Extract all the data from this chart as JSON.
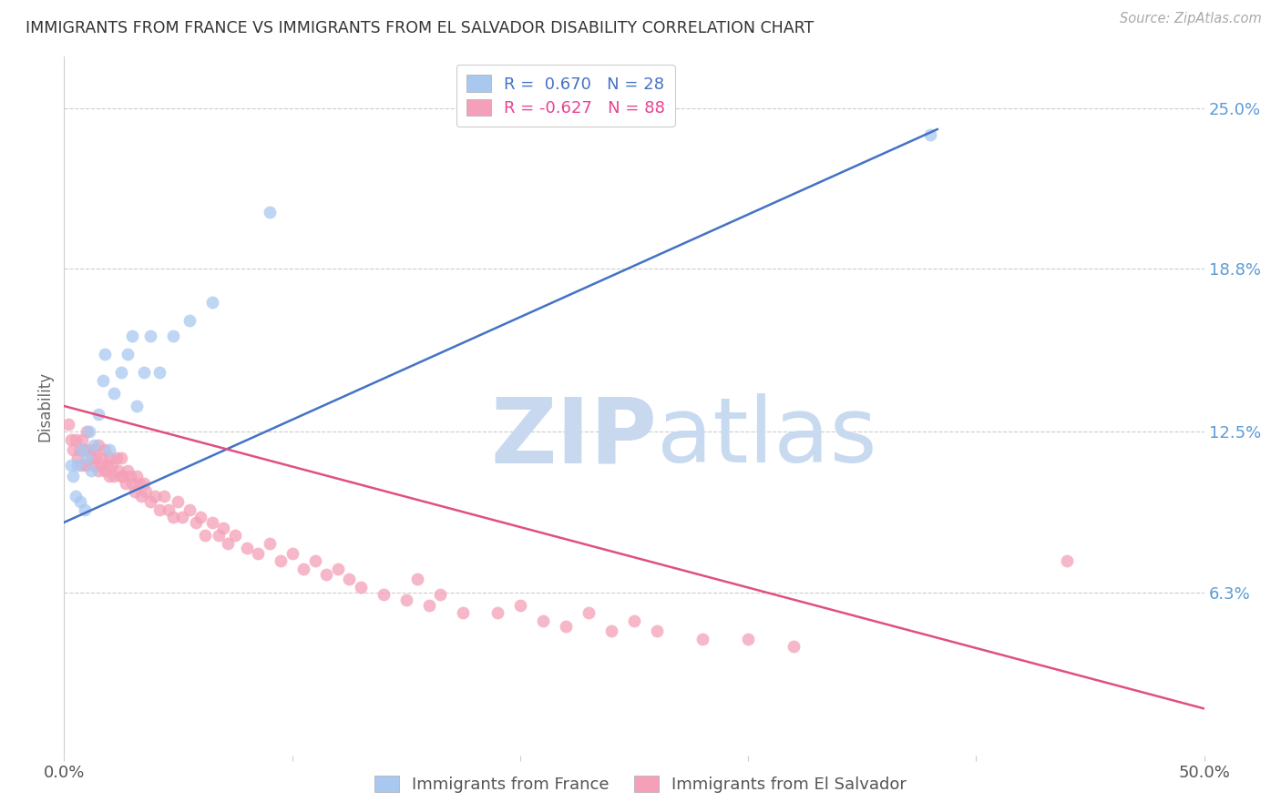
{
  "title": "IMMIGRANTS FROM FRANCE VS IMMIGRANTS FROM EL SALVADOR DISABILITY CORRELATION CHART",
  "source": "Source: ZipAtlas.com",
  "ylabel": "Disability",
  "xlim": [
    0.0,
    0.5
  ],
  "ylim": [
    0.0,
    0.27
  ],
  "yticks": [
    0.0,
    0.063,
    0.125,
    0.188,
    0.25
  ],
  "ytick_labels": [
    "",
    "6.3%",
    "12.5%",
    "18.8%",
    "25.0%"
  ],
  "r_france": 0.67,
  "n_france": 28,
  "r_elsalvador": -0.627,
  "n_elsalvador": 88,
  "france_color": "#a8c8f0",
  "elsalvador_color": "#f4a0b8",
  "france_line_color": "#4472c4",
  "elsalvador_line_color": "#e05080",
  "background_color": "#ffffff",
  "watermark_zip": "ZIP",
  "watermark_atlas": "atlas",
  "watermark_zip_color": "#c8d8ee",
  "watermark_atlas_color": "#c8daf0",
  "france_points_x": [
    0.003,
    0.004,
    0.005,
    0.006,
    0.007,
    0.008,
    0.009,
    0.01,
    0.011,
    0.012,
    0.013,
    0.015,
    0.017,
    0.018,
    0.02,
    0.022,
    0.025,
    0.028,
    0.03,
    0.032,
    0.035,
    0.038,
    0.042,
    0.048,
    0.055,
    0.065,
    0.09,
    0.38
  ],
  "france_points_y": [
    0.112,
    0.108,
    0.1,
    0.112,
    0.098,
    0.118,
    0.095,
    0.115,
    0.125,
    0.11,
    0.12,
    0.132,
    0.145,
    0.155,
    0.118,
    0.14,
    0.148,
    0.155,
    0.162,
    0.135,
    0.148,
    0.162,
    0.148,
    0.162,
    0.168,
    0.175,
    0.21,
    0.24
  ],
  "elsalvador_points_x": [
    0.002,
    0.003,
    0.004,
    0.005,
    0.006,
    0.007,
    0.008,
    0.008,
    0.009,
    0.01,
    0.01,
    0.011,
    0.012,
    0.013,
    0.013,
    0.014,
    0.015,
    0.015,
    0.016,
    0.017,
    0.018,
    0.018,
    0.019,
    0.02,
    0.02,
    0.021,
    0.022,
    0.023,
    0.024,
    0.025,
    0.025,
    0.026,
    0.027,
    0.028,
    0.029,
    0.03,
    0.031,
    0.032,
    0.033,
    0.034,
    0.035,
    0.036,
    0.038,
    0.04,
    0.042,
    0.044,
    0.046,
    0.048,
    0.05,
    0.052,
    0.055,
    0.058,
    0.06,
    0.062,
    0.065,
    0.068,
    0.07,
    0.072,
    0.075,
    0.08,
    0.085,
    0.09,
    0.095,
    0.1,
    0.105,
    0.11,
    0.115,
    0.12,
    0.125,
    0.13,
    0.14,
    0.15,
    0.155,
    0.16,
    0.165,
    0.175,
    0.19,
    0.2,
    0.21,
    0.22,
    0.23,
    0.24,
    0.25,
    0.26,
    0.28,
    0.3,
    0.32,
    0.44
  ],
  "elsalvador_points_y": [
    0.128,
    0.122,
    0.118,
    0.122,
    0.115,
    0.118,
    0.112,
    0.122,
    0.118,
    0.112,
    0.125,
    0.118,
    0.115,
    0.112,
    0.118,
    0.115,
    0.11,
    0.12,
    0.112,
    0.115,
    0.11,
    0.118,
    0.112,
    0.108,
    0.115,
    0.112,
    0.108,
    0.115,
    0.11,
    0.108,
    0.115,
    0.108,
    0.105,
    0.11,
    0.108,
    0.105,
    0.102,
    0.108,
    0.105,
    0.1,
    0.105,
    0.102,
    0.098,
    0.1,
    0.095,
    0.1,
    0.095,
    0.092,
    0.098,
    0.092,
    0.095,
    0.09,
    0.092,
    0.085,
    0.09,
    0.085,
    0.088,
    0.082,
    0.085,
    0.08,
    0.078,
    0.082,
    0.075,
    0.078,
    0.072,
    0.075,
    0.07,
    0.072,
    0.068,
    0.065,
    0.062,
    0.06,
    0.068,
    0.058,
    0.062,
    0.055,
    0.055,
    0.058,
    0.052,
    0.05,
    0.055,
    0.048,
    0.052,
    0.048,
    0.045,
    0.045,
    0.042,
    0.075
  ],
  "france_line_x": [
    0.0,
    0.383
  ],
  "france_line_y": [
    0.09,
    0.242
  ],
  "elsalvador_line_x": [
    0.0,
    0.5
  ],
  "elsalvador_line_y": [
    0.135,
    0.018
  ]
}
